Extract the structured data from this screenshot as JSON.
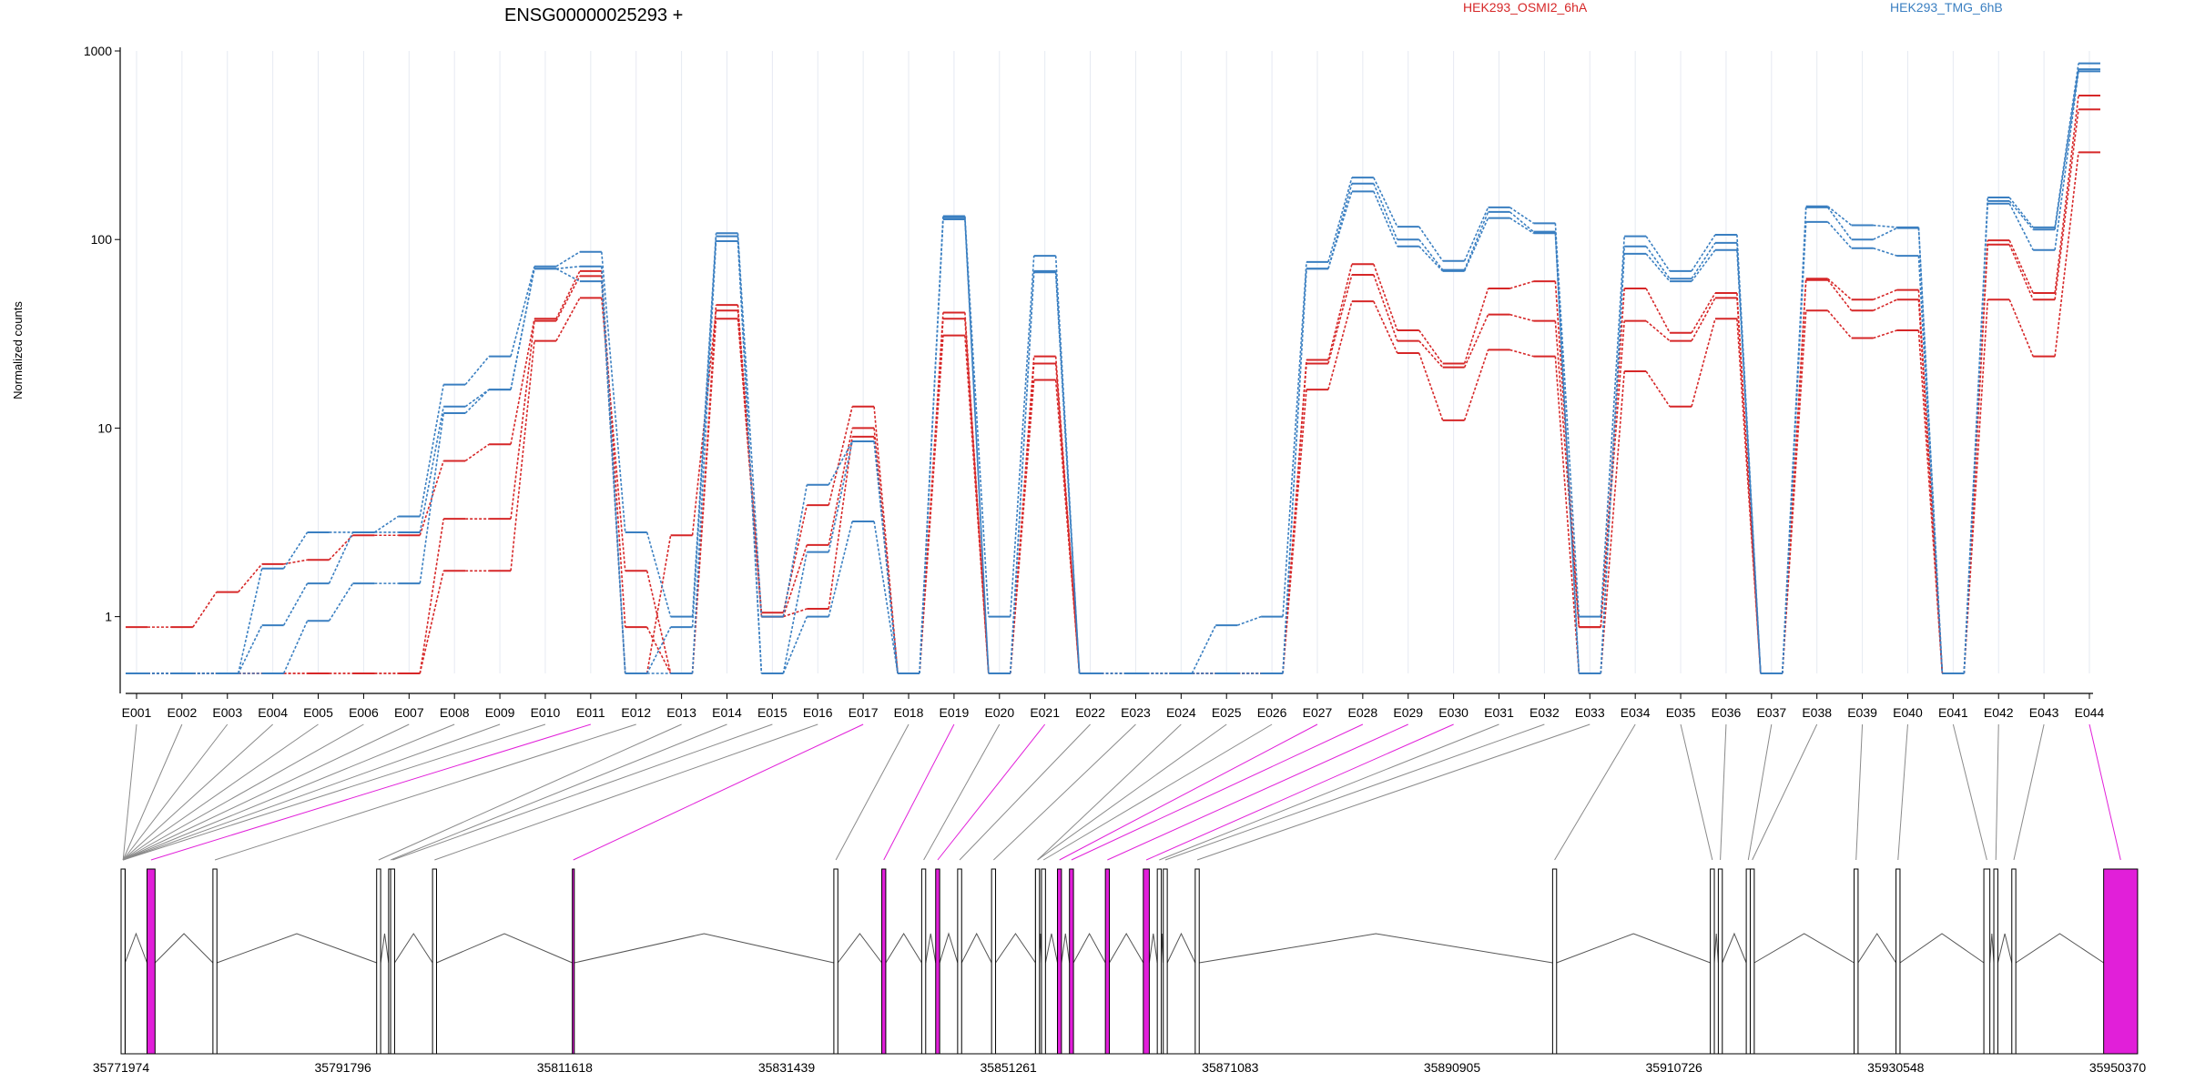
{
  "chart_data": {
    "type": "line",
    "title": "ENSG00000025293 +",
    "ylabel": "Normalized counts",
    "y_scale": "log",
    "ylim": [
      0.5,
      1000
    ],
    "y_ticks": [
      {
        "value": 1,
        "label": "1"
      },
      {
        "value": 10,
        "label": "10"
      },
      {
        "value": 100,
        "label": "100"
      },
      {
        "value": 1000,
        "label": "1000"
      }
    ],
    "grid": "vertical light lines at each exon",
    "legend_placement": "top",
    "categories": [
      "E001",
      "E002",
      "E003",
      "E004",
      "E005",
      "E006",
      "E007",
      "E008",
      "E009",
      "E010",
      "E011",
      "E012",
      "E013",
      "E014",
      "E015",
      "E016",
      "E017",
      "E018",
      "E019",
      "E020",
      "E021",
      "E022",
      "E023",
      "E024",
      "E025",
      "E026",
      "E027",
      "E028",
      "E029",
      "E030",
      "E031",
      "E032",
      "E033",
      "E034",
      "E035",
      "E036",
      "E037",
      "E038",
      "E039",
      "E040",
      "E041",
      "E042",
      "E043",
      "E044"
    ],
    "groups": [
      {
        "name": "HEK293_OSMI2_6hA",
        "color": "#d62728"
      },
      {
        "name": "HEK293_TMG_6hB",
        "color": "#3a7fc1"
      }
    ],
    "series": [
      {
        "group": 0,
        "values": [
          0.88,
          0.88,
          1.35,
          1.9,
          2.0,
          2.7,
          2.7,
          6.7,
          8.2,
          38,
          68,
          0.88,
          0.5,
          45,
          1.05,
          3.9,
          13.0,
          0.5,
          41,
          0.5,
          24,
          0.5,
          0.5,
          0.5,
          0.5,
          0.5,
          23,
          74,
          33,
          22,
          55,
          60,
          0.88,
          55,
          32,
          52,
          0.5,
          62,
          48,
          54,
          0.5,
          99,
          52,
          580
        ]
      },
      {
        "group": 0,
        "values": [
          0.5,
          0.5,
          0.5,
          0.5,
          0.5,
          0.5,
          0.5,
          3.3,
          3.3,
          37,
          64,
          0.5,
          2.7,
          42,
          1.0,
          2.4,
          10.0,
          0.5,
          38,
          0.5,
          22,
          0.5,
          0.5,
          0.5,
          0.5,
          0.5,
          22,
          65,
          29,
          21,
          40,
          37,
          0.88,
          37,
          29,
          49,
          0.5,
          61,
          42,
          48,
          0.5,
          94,
          48,
          490
        ]
      },
      {
        "group": 0,
        "values": [
          0.5,
          0.5,
          0.5,
          0.5,
          0.5,
          0.5,
          0.5,
          1.75,
          1.75,
          29,
          49,
          1.75,
          0.5,
          38,
          1.0,
          1.1,
          9.0,
          0.5,
          31,
          0.5,
          18,
          0.5,
          0.5,
          0.5,
          0.5,
          0.5,
          16,
          47,
          25,
          11,
          26,
          24,
          0.5,
          20,
          13,
          38,
          0.5,
          42,
          30,
          33,
          0.5,
          48,
          24,
          290
        ]
      },
      {
        "group": 1,
        "values": [
          0.5,
          0.5,
          0.5,
          1.8,
          2.8,
          2.8,
          3.4,
          17,
          24,
          72,
          86,
          2.8,
          1.0,
          108,
          1.0,
          5.0,
          8.5,
          0.5,
          133,
          1.0,
          82,
          0.5,
          0.5,
          0.5,
          0.9,
          1.0,
          76,
          213,
          117,
          77,
          148,
          122,
          1.0,
          104,
          68,
          106,
          0.5,
          150,
          119,
          116,
          0.5,
          167,
          116,
          860
        ]
      },
      {
        "group": 1,
        "values": [
          0.5,
          0.5,
          0.5,
          0.9,
          1.5,
          2.8,
          2.8,
          13,
          16,
          70,
          72,
          0.5,
          0.88,
          104,
          0.5,
          2.2,
          8.5,
          0.5,
          131,
          0.5,
          67,
          0.5,
          0.5,
          0.5,
          0.5,
          0.5,
          70,
          198,
          100,
          69,
          140,
          110,
          0.5,
          92,
          62,
          96,
          0.5,
          148,
          100,
          115,
          0.5,
          160,
          113,
          800
        ]
      },
      {
        "group": 1,
        "values": [
          0.5,
          0.5,
          0.5,
          0.5,
          0.95,
          1.5,
          1.5,
          12,
          16,
          70,
          60,
          0.5,
          0.5,
          98,
          0.5,
          1.0,
          3.2,
          0.5,
          128,
          0.5,
          68,
          0.5,
          0.5,
          0.5,
          0.5,
          0.5,
          70,
          180,
          92,
          68,
          130,
          108,
          0.5,
          84,
          60,
          88,
          0.5,
          124,
          90,
          82,
          0.5,
          155,
          88,
          780
        ]
      }
    ],
    "highlighted_exons": [
      "E011",
      "E017",
      "E019",
      "E021",
      "E027",
      "E028",
      "E029",
      "E030",
      "E044"
    ],
    "genomic_ticks": [
      "35771974",
      "35791796",
      "35811618",
      "35831439",
      "35851261",
      "35871083",
      "35890905",
      "35910726",
      "35930548",
      "35950370"
    ]
  },
  "colors": {
    "group_a": "#d62728",
    "group_b": "#3a7fc1",
    "highlight": "#e11fd9",
    "axis": "#000000",
    "grid": "#e6eaf2"
  }
}
